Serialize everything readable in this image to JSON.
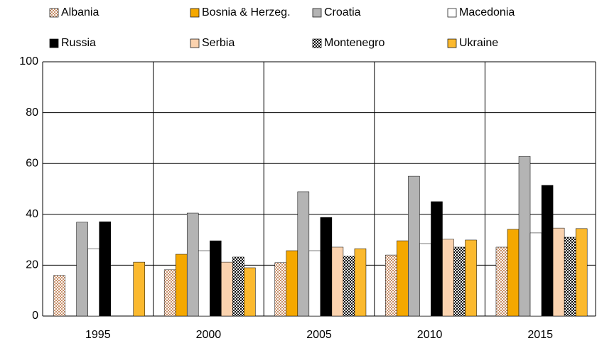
{
  "chart_data": {
    "type": "bar",
    "categories": [
      "1995",
      "2000",
      "2005",
      "2010",
      "2015"
    ],
    "series": [
      {
        "name": "Albania",
        "color": "#c8906a",
        "pattern": "checker",
        "values": [
          16,
          18.2,
          21,
          24,
          27.1
        ]
      },
      {
        "name": "Bosnia & Herzeg.",
        "color": "#f5a800",
        "values": [
          null,
          24.3,
          25.7,
          29.6,
          34.1
        ]
      },
      {
        "name": "Croatia",
        "color": "#b4b4b4",
        "values": [
          36.9,
          40.5,
          48.9,
          55,
          62.8
        ]
      },
      {
        "name": "Macedonia",
        "color": "#ffffff",
        "values": [
          26.5,
          25.7,
          25.7,
          28.5,
          32.7
        ]
      },
      {
        "name": "Russia",
        "color": "#000000",
        "values": [
          37.1,
          29.6,
          38.8,
          45,
          51.4
        ]
      },
      {
        "name": "Serbia",
        "color": "#fad2ae",
        "values": [
          null,
          21.2,
          27.1,
          30.2,
          34.6
        ]
      },
      {
        "name": "Montenegro",
        "color": "#000000",
        "pattern": "checker",
        "values": [
          null,
          23.2,
          23.5,
          27.1,
          31
        ]
      },
      {
        "name": "Ukraine",
        "color": "#fbb92e",
        "values": [
          21.2,
          19,
          26.5,
          29.9,
          34.4
        ]
      }
    ],
    "ylim": [
      0,
      100
    ],
    "yticks": [
      0,
      20,
      40,
      60,
      80,
      100
    ],
    "grid": true,
    "legend": "top"
  }
}
